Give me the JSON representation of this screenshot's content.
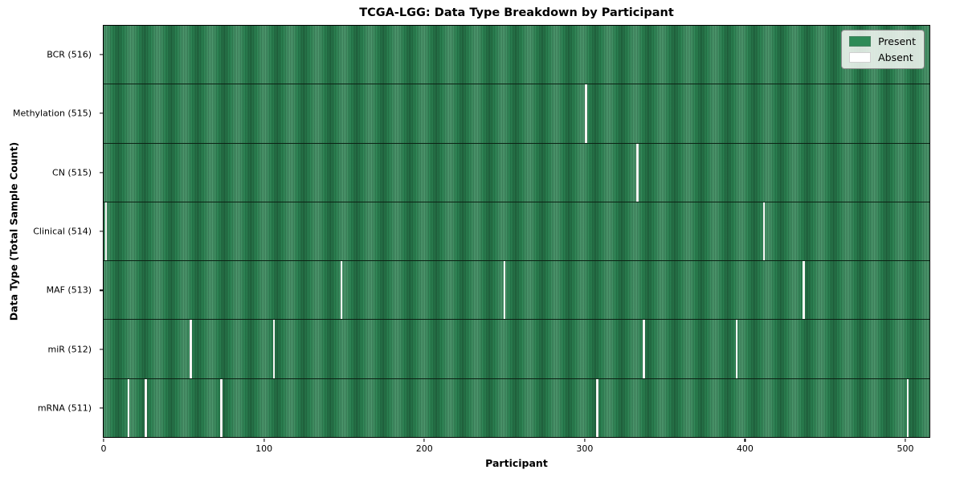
{
  "chart_data": {
    "type": "heatmap",
    "title": "TCGA-LGG: Data Type Breakdown by Participant",
    "xlabel": "Participant",
    "ylabel": "Data Type (Total Sample Count)",
    "n_participants": 516,
    "x_ticks": [
      0,
      100,
      200,
      300,
      400,
      500
    ],
    "grid": false,
    "legend_position": "upper right",
    "colors": {
      "present": "#2e8b57",
      "absent": "#f5f5f3"
    },
    "legend_entries": [
      {
        "label": "Present",
        "color": "#2e8b57"
      },
      {
        "label": "Absent",
        "color": "#ffffff"
      }
    ],
    "rows": [
      {
        "label": "BCR (516)",
        "data_type": "BCR",
        "sample_count": 516,
        "absent_participants": []
      },
      {
        "label": "Methylation (515)",
        "data_type": "Methylation",
        "sample_count": 515,
        "absent_participants": [
          301
        ]
      },
      {
        "label": "CN (515)",
        "data_type": "CN",
        "sample_count": 515,
        "absent_participants": [
          333
        ]
      },
      {
        "label": "Clinical (514)",
        "data_type": "Clinical",
        "sample_count": 514,
        "absent_participants": [
          1,
          412
        ]
      },
      {
        "label": "MAF (513)",
        "data_type": "MAF",
        "sample_count": 513,
        "absent_participants": [
          148,
          250,
          437
        ]
      },
      {
        "label": "miR (512)",
        "data_type": "miR",
        "sample_count": 512,
        "absent_participants": [
          54,
          106,
          337,
          395
        ]
      },
      {
        "label": "mRNA (511)",
        "data_type": "mRNA",
        "sample_count": 511,
        "absent_participants": [
          15,
          26,
          73,
          308,
          502
        ]
      }
    ]
  }
}
